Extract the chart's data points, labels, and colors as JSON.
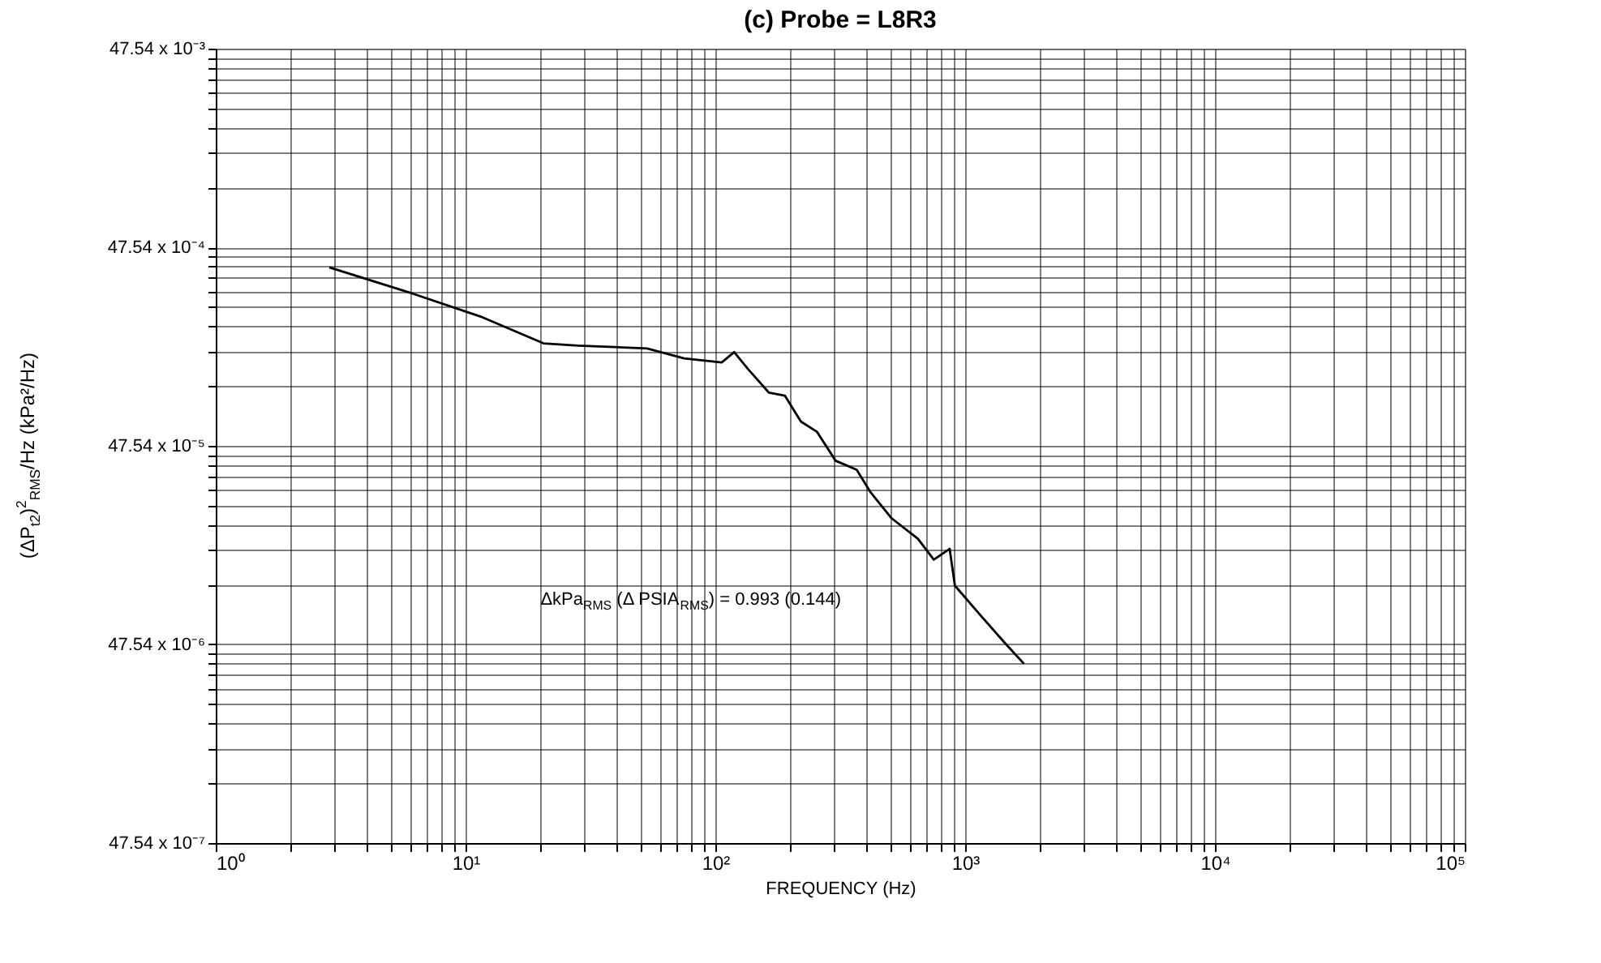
{
  "chart_data": {
    "type": "line",
    "title": "(c) Probe = L8R3",
    "xlabel": "FREQUENCY (Hz)",
    "ylabel": "(ΔP$_{t2}$)$^{2}$$_{RMS}$/Hz (kPa²/Hz)",
    "log": "xy",
    "grid": true,
    "marker": "none",
    "line_style": "solid",
    "xlim": [
      1,
      100000
    ],
    "ylim": [
      4.754e-06,
      0.04754
    ],
    "xticks": [
      {
        "value": 1,
        "label": "10⁰"
      },
      {
        "value": 2,
        "label": null
      },
      {
        "value": 3,
        "label": null
      },
      {
        "value": 4,
        "label": null
      },
      {
        "value": 5,
        "label": null
      },
      {
        "value": 6,
        "label": null
      },
      {
        "value": 7,
        "label": null
      },
      {
        "value": 8,
        "label": null
      },
      {
        "value": 9,
        "label": null
      },
      {
        "value": 10,
        "label": "10¹"
      },
      {
        "value": 20,
        "label": null
      },
      {
        "value": 30,
        "label": null
      },
      {
        "value": 40,
        "label": null
      },
      {
        "value": 50,
        "label": null
      },
      {
        "value": 60,
        "label": null
      },
      {
        "value": 70,
        "label": null
      },
      {
        "value": 80,
        "label": null
      },
      {
        "value": 90,
        "label": null
      },
      {
        "value": 100,
        "label": "10²"
      },
      {
        "value": 200,
        "label": null
      },
      {
        "value": 300,
        "label": null
      },
      {
        "value": 400,
        "label": null
      },
      {
        "value": 500,
        "label": null
      },
      {
        "value": 600,
        "label": null
      },
      {
        "value": 700,
        "label": null
      },
      {
        "value": 800,
        "label": null
      },
      {
        "value": 900,
        "label": null
      },
      {
        "value": 1000,
        "label": "10³"
      },
      {
        "value": 2000,
        "label": null
      },
      {
        "value": 3000,
        "label": null
      },
      {
        "value": 4000,
        "label": null
      },
      {
        "value": 5000,
        "label": null
      },
      {
        "value": 6000,
        "label": null
      },
      {
        "value": 7000,
        "label": null
      },
      {
        "value": 8000,
        "label": null
      },
      {
        "value": 9000,
        "label": null
      },
      {
        "value": 10000,
        "label": "10⁴"
      },
      {
        "value": 20000,
        "label": null
      },
      {
        "value": 30000,
        "label": null
      },
      {
        "value": 40000,
        "label": null
      },
      {
        "value": 50000,
        "label": null
      },
      {
        "value": 60000,
        "label": null
      },
      {
        "value": 70000,
        "label": null
      },
      {
        "value": 80000,
        "label": null
      },
      {
        "value": 90000,
        "label": null
      },
      {
        "value": 100000,
        "label": "10⁵"
      }
    ],
    "yticks": [
      {
        "value": 4.754e-06,
        "label": "47.54 x 10⁻⁷"
      },
      {
        "value": 9.508e-06,
        "label": null
      },
      {
        "value": 1.4262e-05,
        "label": null
      },
      {
        "value": 1.9016e-05,
        "label": null
      },
      {
        "value": 2.377e-05,
        "label": null
      },
      {
        "value": 2.8524e-05,
        "label": null
      },
      {
        "value": 3.3278e-05,
        "label": null
      },
      {
        "value": 3.8032e-05,
        "label": null
      },
      {
        "value": 4.2786e-05,
        "label": null
      },
      {
        "value": 4.754e-05,
        "label": "47.54 x 10⁻⁶"
      },
      {
        "value": 9.508e-05,
        "label": null
      },
      {
        "value": 0.00014262,
        "label": null
      },
      {
        "value": 0.00019016,
        "label": null
      },
      {
        "value": 0.0002377,
        "label": null
      },
      {
        "value": 0.00028524,
        "label": null
      },
      {
        "value": 0.00033278,
        "label": null
      },
      {
        "value": 0.00038032,
        "label": null
      },
      {
        "value": 0.00042786,
        "label": null
      },
      {
        "value": 0.0004754,
        "label": "47.54 x 10⁻⁵"
      },
      {
        "value": 0.0009508,
        "label": null
      },
      {
        "value": 0.0014262,
        "label": null
      },
      {
        "value": 0.0019016,
        "label": null
      },
      {
        "value": 0.002377,
        "label": null
      },
      {
        "value": 0.0028524,
        "label": null
      },
      {
        "value": 0.0033278,
        "label": null
      },
      {
        "value": 0.0038032,
        "label": null
      },
      {
        "value": 0.0042786,
        "label": null
      },
      {
        "value": 0.004754,
        "label": "47.54 x 10⁻⁴"
      },
      {
        "value": 0.009508,
        "label": null
      },
      {
        "value": 0.014262,
        "label": null
      },
      {
        "value": 0.019016,
        "label": null
      },
      {
        "value": 0.02377,
        "label": null
      },
      {
        "value": 0.028524,
        "label": null
      },
      {
        "value": 0.033278,
        "label": null
      },
      {
        "value": 0.038032,
        "label": null
      },
      {
        "value": 0.042786,
        "label": null
      },
      {
        "value": 0.04754,
        "label": "47.54 x 10⁻³"
      }
    ],
    "annotations": [
      "ΔkPa$_{RMS}$ (Δ PSIA$_{RMS}$) = 0.993 (0.144)"
    ],
    "series": [
      {
        "color": "#000000",
        "x": [
          2.85,
          6.18,
          11.7,
          20.5,
          28.2,
          53.3,
          75,
          106,
          119,
          135,
          164,
          190,
          220,
          255,
          303,
          368,
          416,
          506,
          647,
          749,
          867,
          910,
          1160,
          1450,
          1720
        ],
        "values": [
          0.00376,
          0.00277,
          0.00211,
          0.00156,
          0.00152,
          0.00147,
          0.00131,
          0.00125,
          0.00141,
          0.00116,
          0.00088,
          0.00085,
          0.00063,
          0.00056,
          0.0004,
          0.00036,
          0.00028,
          0.000206,
          0.000162,
          0.000127,
          0.000144,
          9.4e-05,
          6.6e-05,
          4.8e-05,
          3.8e-05
        ]
      }
    ]
  }
}
